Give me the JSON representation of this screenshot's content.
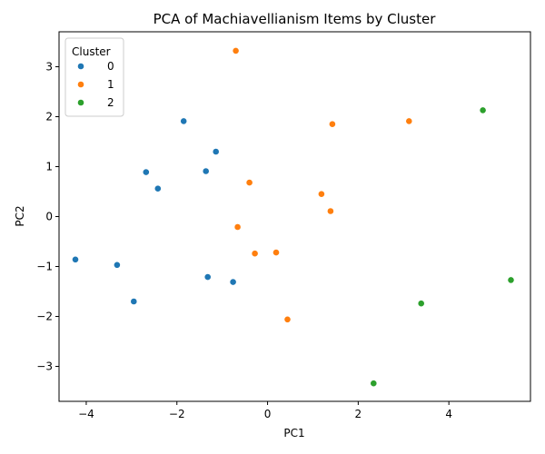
{
  "chart_data": {
    "type": "scatter",
    "title": "PCA of Machiavellianism Items by Cluster",
    "xlabel": "PC1",
    "ylabel": "PC2",
    "xlim": [
      -4.6,
      5.8
    ],
    "ylim": [
      -3.7,
      3.7
    ],
    "xticks": [
      -4,
      -2,
      0,
      2,
      4
    ],
    "yticks": [
      -3,
      -2,
      -1,
      0,
      1,
      2,
      3
    ],
    "grid": false,
    "legend": {
      "title": "Cluster",
      "placement": "top-left"
    },
    "series": [
      {
        "name": "0",
        "color": "#1f77b4",
        "points": [
          [
            -1.85,
            1.91
          ],
          [
            -1.14,
            1.3
          ],
          [
            -2.68,
            0.89
          ],
          [
            -1.36,
            0.91
          ],
          [
            -2.42,
            0.56
          ],
          [
            -4.24,
            -0.86
          ],
          [
            -3.32,
            -0.97
          ],
          [
            -1.32,
            -1.21
          ],
          [
            -0.76,
            -1.31
          ],
          [
            -2.95,
            -1.7
          ]
        ]
      },
      {
        "name": "1",
        "color": "#ff7f0e",
        "points": [
          [
            -0.7,
            3.32
          ],
          [
            1.43,
            1.85
          ],
          [
            3.12,
            1.91
          ],
          [
            -0.4,
            0.68
          ],
          [
            1.19,
            0.45
          ],
          [
            1.39,
            0.11
          ],
          [
            -0.66,
            -0.21
          ],
          [
            -0.28,
            -0.74
          ],
          [
            0.19,
            -0.72
          ],
          [
            0.44,
            -2.06
          ]
        ]
      },
      {
        "name": "2",
        "color": "#2ca02c",
        "points": [
          [
            4.75,
            2.13
          ],
          [
            5.37,
            -1.27
          ],
          [
            3.39,
            -1.74
          ],
          [
            2.34,
            -3.34
          ]
        ]
      }
    ]
  }
}
